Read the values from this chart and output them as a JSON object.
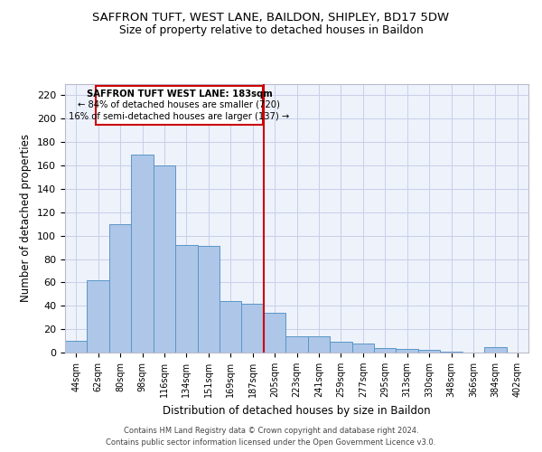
{
  "title1": "SAFFRON TUFT, WEST LANE, BAILDON, SHIPLEY, BD17 5DW",
  "title2": "Size of property relative to detached houses in Baildon",
  "xlabel": "Distribution of detached houses by size in Baildon",
  "ylabel": "Number of detached properties",
  "categories": [
    "44sqm",
    "62sqm",
    "80sqm",
    "98sqm",
    "116sqm",
    "134sqm",
    "151sqm",
    "169sqm",
    "187sqm",
    "205sqm",
    "223sqm",
    "241sqm",
    "259sqm",
    "277sqm",
    "295sqm",
    "313sqm",
    "330sqm",
    "348sqm",
    "366sqm",
    "384sqm",
    "402sqm"
  ],
  "values": [
    10,
    62,
    110,
    169,
    160,
    92,
    91,
    44,
    42,
    34,
    14,
    14,
    9,
    8,
    4,
    3,
    2,
    1,
    0,
    5,
    0
  ],
  "bar_color": "#aec6e8",
  "bar_edge_color": "#5a96c8",
  "vline_x_index": 8,
  "annotation_line1": "SAFFRON TUFT WEST LANE: 183sqm",
  "annotation_line2": "← 84% of detached houses are smaller (720)",
  "annotation_line3": "16% of semi-detached houses are larger (137) →",
  "annotation_box_color": "#ffffff",
  "annotation_box_edge": "#cc0000",
  "vline_color": "#cc0000",
  "footer1": "Contains HM Land Registry data © Crown copyright and database right 2024.",
  "footer2": "Contains public sector information licensed under the Open Government Licence v3.0.",
  "ylim": [
    0,
    230
  ],
  "yticks": [
    0,
    20,
    40,
    60,
    80,
    100,
    120,
    140,
    160,
    180,
    200,
    220
  ],
  "bg_color": "#eef2fb",
  "grid_color": "#c8cfe8"
}
